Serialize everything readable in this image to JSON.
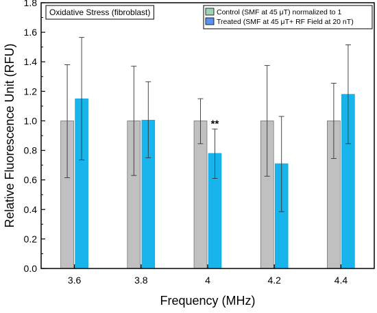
{
  "chart_data": {
    "type": "bar",
    "title": "Oxidative Stress (fibroblast)",
    "xlabel": "Frequency (MHz)",
    "ylabel": "Relative Fluorescence Unit (RFU)",
    "categories": [
      "3.6",
      "3.8",
      "4",
      "4.2",
      "4.4"
    ],
    "ylim": [
      0,
      1.8
    ],
    "yticks": [
      "0.0",
      "0.2",
      "0.4",
      "0.6",
      "0.8",
      "1.0",
      "1.2",
      "1.4",
      "1.6",
      "1.8"
    ],
    "legend_position": "top-right",
    "series": [
      {
        "name": "Control  (SMF at 45 μT) normalized to 1",
        "color": "#c0c0c0",
        "legend_color": "#9fd3b4",
        "values": [
          1.0,
          1.0,
          1.0,
          1.0,
          1.0
        ],
        "err_high": [
          1.38,
          1.37,
          1.15,
          1.375,
          1.255
        ],
        "err_low": [
          0.615,
          0.63,
          0.845,
          0.625,
          0.745
        ]
      },
      {
        "name": "Treated (SMF at 45 μT+ RF Field at 20 nT)",
        "color": "#18b4ec",
        "legend_color": "#5b8ff0",
        "values": [
          1.15,
          1.005,
          0.78,
          0.71,
          1.18
        ],
        "err_high": [
          1.565,
          1.265,
          0.945,
          1.03,
          1.515
        ],
        "err_low": [
          0.735,
          0.75,
          0.61,
          0.385,
          0.845
        ]
      }
    ],
    "annotations": [
      {
        "category": "4",
        "series": 1,
        "text": "**"
      }
    ]
  }
}
